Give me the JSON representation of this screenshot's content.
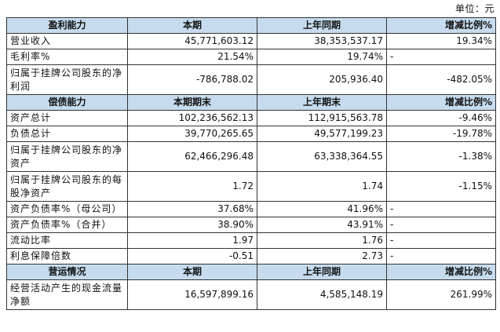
{
  "unit_label": "单位：元",
  "sections": [
    {
      "header": [
        "盈利能力",
        "本期",
        "上年同期",
        "增减比例%"
      ],
      "rows": [
        [
          "营业收入",
          "45,771,603.12",
          "38,353,537.17",
          "19.34%"
        ],
        [
          "毛利率%",
          "21.54%",
          "19.74%",
          "-"
        ],
        [
          "归属于挂牌公司股东的净利润",
          "-786,788.02",
          "205,936.40",
          "-482.05%"
        ]
      ]
    },
    {
      "header": [
        "偿债能力",
        "本期期末",
        "上年期末",
        "增减比例%"
      ],
      "rows": [
        [
          "资产总计",
          "102,236,562.13",
          "112,915,563.78",
          "-9.46%"
        ],
        [
          "负债总计",
          "39,770,265.65",
          "49,577,199.23",
          "-19.78%"
        ],
        [
          "归属于挂牌公司股东的净资产",
          "62,466,296.48",
          "63,338,364.55",
          "-1.38%"
        ],
        [
          "归属于挂牌公司股东的每股净资产",
          "1.72",
          "1.74",
          "-1.15%"
        ],
        [
          "资产负债率%（母公司）",
          "37.68%",
          "41.96%",
          "-"
        ],
        [
          "资产负债率%（合并）",
          "38.90%",
          "43.91%",
          "-"
        ],
        [
          "流动比率",
          "1.97",
          "1.76",
          "-"
        ],
        [
          "利息保障倍数",
          "-0.51",
          "2.73",
          "-"
        ]
      ]
    },
    {
      "header": [
        "营运情况",
        "本期",
        "上年同期",
        "增减比例%"
      ],
      "rows": [
        [
          "经营活动产生的现金流量净额",
          "16,597,899.16",
          "4,585,148.19",
          "261.99%"
        ]
      ]
    }
  ]
}
